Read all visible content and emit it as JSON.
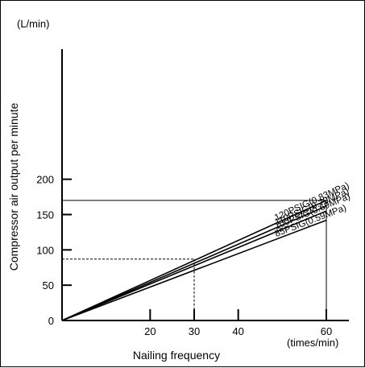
{
  "chart_data": {
    "type": "line",
    "title": "",
    "xlabel": "Nailing frequency",
    "ylabel": "Compressor air output per minute",
    "x_unit": "(times/min)",
    "y_unit": "(L/min)",
    "xlim": [
      0,
      60
    ],
    "ylim": [
      0,
      225
    ],
    "x_ticks": [
      20,
      30,
      40,
      60
    ],
    "y_ticks": [
      0,
      50,
      100,
      150,
      200
    ],
    "grid": false,
    "series": [
      {
        "name": "120PSIG(0.83MPa)",
        "x": [
          0,
          60
        ],
        "y": [
          0,
          170
        ]
      },
      {
        "name": "110PSIG(0.79MPa)",
        "x": [
          0,
          60
        ],
        "y": [
          0,
          162
        ]
      },
      {
        "name": "100PSIG(0.69MPa)",
        "x": [
          0,
          60
        ],
        "y": [
          0,
          155
        ]
      },
      {
        "name": "85PSIG(0.59MPa)",
        "x": [
          0,
          60
        ],
        "y": [
          0,
          142
        ]
      }
    ],
    "reference": {
      "solid_box": {
        "x": 60,
        "y": 170
      },
      "dashed_box": {
        "x": 30,
        "y": 87
      }
    }
  }
}
